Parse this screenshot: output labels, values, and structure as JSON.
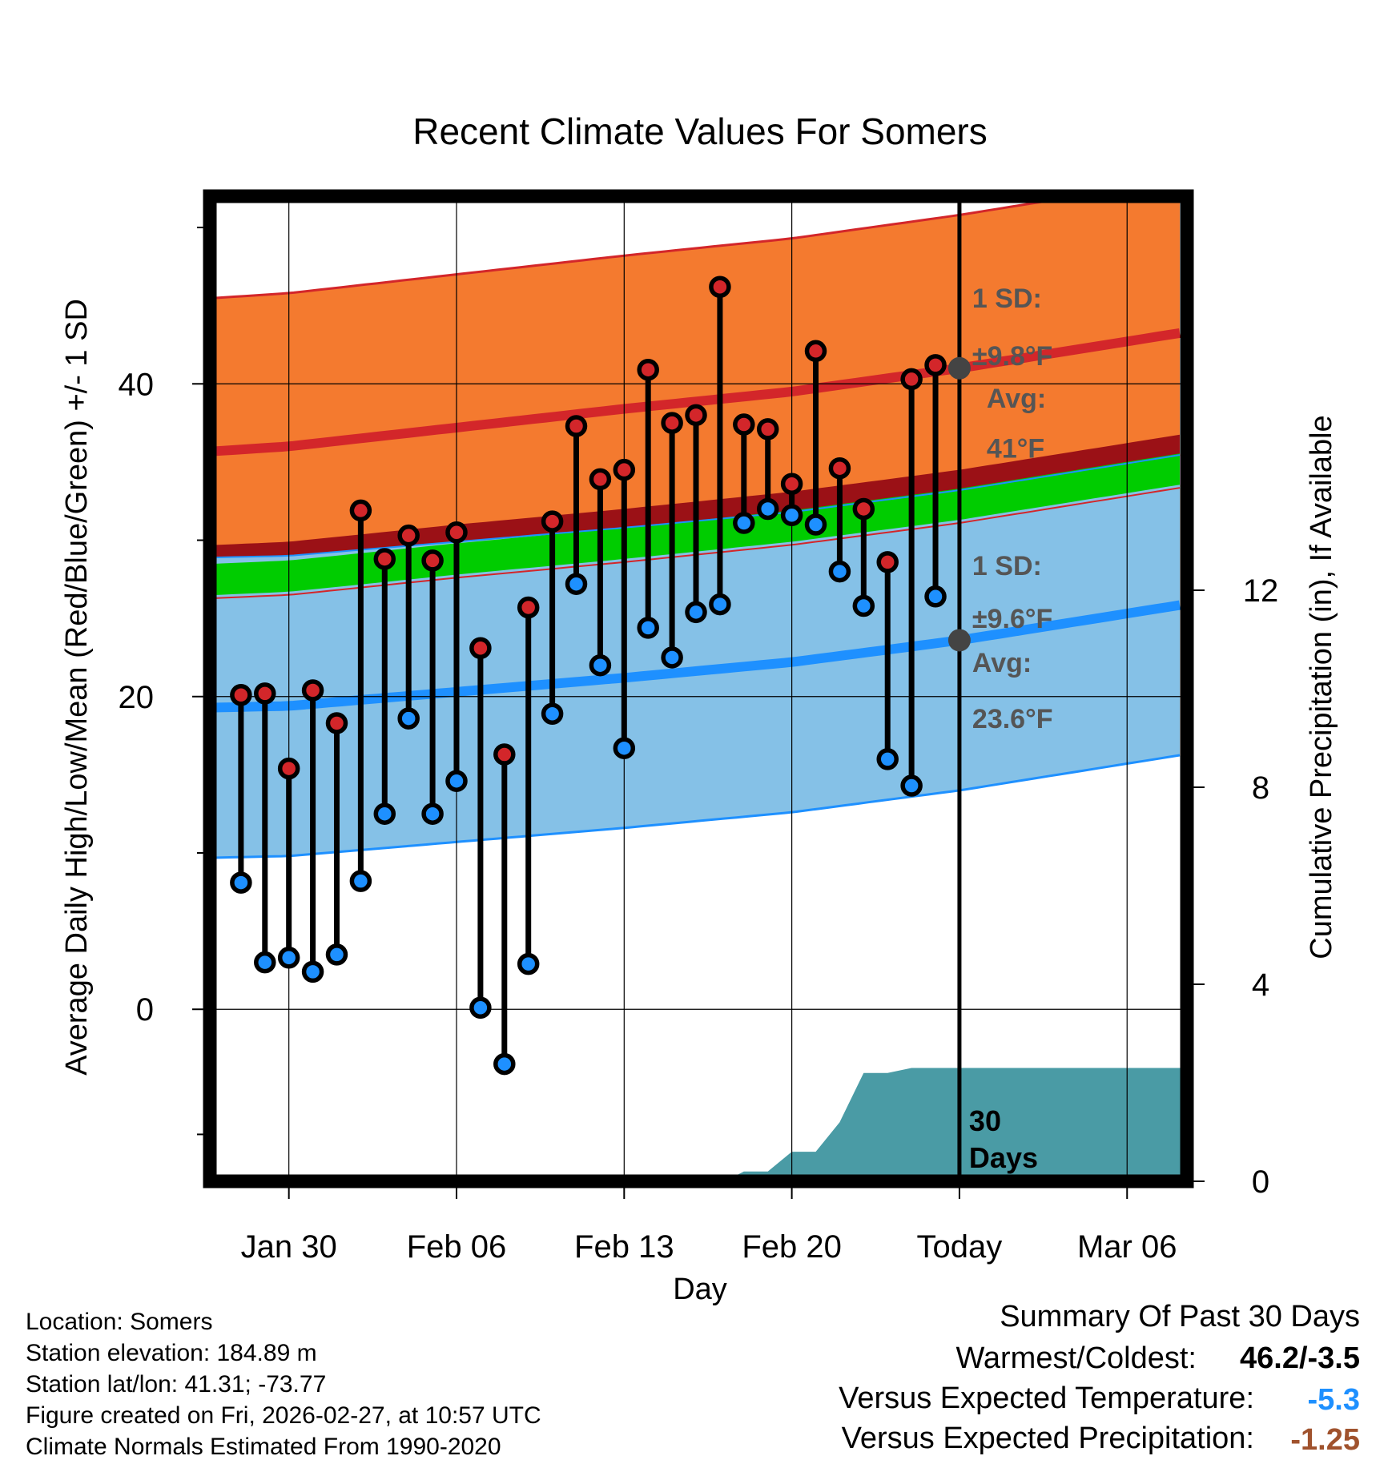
{
  "chart_data": {
    "type": "climate-range",
    "title": "Recent Climate Values For Somers",
    "xlabel": "Day",
    "ylabel": "Average Daily High/Low/Mean (Red/Blue/Green) +/- 1 SD",
    "y2label": "Cumulative Precipitation (in), If Available",
    "x_range": [
      -3.3,
      37.5
    ],
    "ylim": [
      -11,
      52
    ],
    "y2lim": [
      0,
      20
    ],
    "x_tick_days": [
      0,
      7,
      14,
      21,
      28,
      35
    ],
    "x_tick_labels": [
      "Jan 30",
      "Feb 06",
      "Feb 13",
      "Feb 20",
      "Today",
      "Mar 06"
    ],
    "y_ticks": [
      0,
      20,
      40
    ],
    "y_minor_ticks": [
      -8,
      10,
      30,
      50
    ],
    "y2_ticks": [
      0,
      4,
      8,
      12
    ],
    "today_day": 28,
    "normals": {
      "days": [
        -3,
        0,
        7,
        14,
        21,
        28,
        37
      ],
      "high_avg": [
        35.7,
        36.0,
        37.2,
        38.4,
        39.5,
        41.0,
        43.2
      ],
      "high_sd": 9.8,
      "low_avg": [
        19.3,
        19.4,
        20.3,
        21.2,
        22.2,
        23.6,
        25.8
      ],
      "low_sd": 9.6,
      "mean_avg": [
        27.5,
        27.7,
        28.8,
        29.8,
        30.9,
        32.3,
        34.5
      ]
    },
    "annotations": {
      "high_sd_label": "1 SD:",
      "high_sd_value": "±9.8°F",
      "high_avg_label": "Avg:",
      "high_avg_value": "41°F",
      "low_sd_label": "1 SD:",
      "low_sd_value": "±9.6°F",
      "low_avg_label": "Avg:",
      "low_avg_value": "23.6°F",
      "period_label_1": "30",
      "period_label_2": "Days"
    },
    "series": [
      {
        "name": "Daily High",
        "days": [
          -2,
          -1,
          0,
          1,
          2,
          3,
          4,
          5,
          6,
          7,
          8,
          9,
          10,
          11,
          12,
          13,
          14,
          15,
          16,
          17,
          18,
          19,
          20,
          21,
          22,
          23,
          24,
          25,
          26,
          27
        ],
        "values": [
          20.1,
          20.2,
          15.4,
          20.4,
          18.3,
          31.9,
          28.8,
          30.3,
          28.7,
          30.5,
          23.1,
          16.3,
          25.7,
          31.2,
          37.3,
          33.9,
          34.5,
          40.9,
          37.5,
          38.0,
          46.2,
          37.4,
          37.1,
          33.6,
          42.1,
          34.6,
          32.0,
          28.6,
          40.3,
          41.2
        ]
      },
      {
        "name": "Daily Low",
        "days": [
          -2,
          -1,
          0,
          1,
          2,
          3,
          4,
          5,
          6,
          7,
          8,
          9,
          10,
          11,
          12,
          13,
          14,
          15,
          16,
          17,
          18,
          19,
          20,
          21,
          22,
          23,
          24,
          25,
          26,
          27
        ],
        "values": [
          8.1,
          3.0,
          3.3,
          2.4,
          3.5,
          8.2,
          12.5,
          18.6,
          12.5,
          14.6,
          0.1,
          -3.5,
          2.9,
          18.9,
          27.2,
          22.0,
          16.7,
          24.4,
          22.5,
          25.4,
          25.9,
          31.1,
          32.0,
          31.6,
          31.0,
          28.0,
          25.8,
          16.0,
          14.3,
          26.4
        ]
      },
      {
        "name": "Cumulative Precipitation",
        "days": [
          -3.3,
          18.2,
          19.0,
          20.0,
          21.0,
          22.0,
          23.0,
          24.0,
          25.0,
          26.0,
          37.5
        ],
        "values": [
          0,
          0,
          0.2,
          0.2,
          0.6,
          0.6,
          1.2,
          2.2,
          2.2,
          2.3,
          2.3
        ]
      }
    ]
  },
  "footer": {
    "location": "Location: Somers",
    "elevation": "Station elevation: 184.89 m",
    "latlon": "Station lat/lon: 41.31; -73.77",
    "created": "Figure created on Fri, 2026-02-27, at 10:57 UTC",
    "normals_source": "Climate Normals Estimated From 1990-2020"
  },
  "summary": {
    "title": "Summary Of Past 30 Days",
    "warm_cold_label": "Warmest/Coldest:",
    "warm_cold_value": "46.2/-3.5",
    "temp_label": "Versus Expected Temperature:",
    "temp_value": "-5.3",
    "precip_label": "Versus Expected Precipitation:",
    "precip_value": "-1.25"
  },
  "colors": {
    "high_band": "#f47a2f",
    "high_line": "#d3262a",
    "low_band": "#85c1e7",
    "low_line": "#1e90ff",
    "mean_band": "#00cc00",
    "dark_red": "#9b1116",
    "precip": "#4a9ba5",
    "annotation": "#555555",
    "temp_value": "#1e90ff",
    "precip_value": "#a0522d"
  }
}
